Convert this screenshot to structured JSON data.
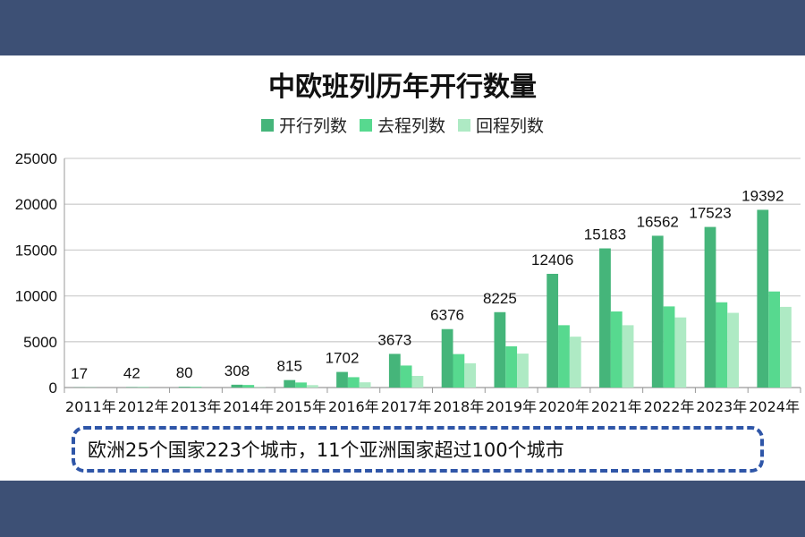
{
  "chart_data": {
    "type": "bar",
    "title": "中欧班列历年开行数量",
    "xlabel": "",
    "ylabel": "",
    "ylim": [
      0,
      25000
    ],
    "yticks": [
      "0",
      "5000",
      "10000",
      "15000",
      "20000",
      "25000"
    ],
    "grid": true,
    "legend_position": "top",
    "categories": [
      "2011年",
      "2012年",
      "2013年",
      "2014年",
      "2015年",
      "2016年",
      "2017年",
      "2018年",
      "2019年",
      "2020年",
      "2021年",
      "2022年",
      "2023年",
      "2024年"
    ],
    "series": [
      {
        "name": "开行列数",
        "color": "#45b57a",
        "values": [
          17,
          42,
          80,
          308,
          815,
          1702,
          3673,
          6376,
          8225,
          12406,
          15183,
          16562,
          17523,
          19392
        ],
        "labels": [
          "17",
          "42",
          "80",
          "308",
          "815",
          "1702",
          "3673",
          "6376",
          "8225",
          "12406",
          "15183",
          "16562",
          "17523",
          "19392"
        ]
      },
      {
        "name": "去程列数",
        "color": "#57d98f",
        "values": [
          17,
          42,
          80,
          280,
          550,
          1130,
          2400,
          3650,
          4500,
          6800,
          8300,
          8850,
          9300,
          10480
        ]
      },
      {
        "name": "回程列数",
        "color": "#aeeac4",
        "values": [
          0,
          0,
          0,
          28,
          265,
          570,
          1270,
          2650,
          3700,
          5550,
          6800,
          7650,
          8150,
          8800
        ]
      }
    ]
  },
  "note": "欧洲25个国家223个城市，11个亚洲国家超过100个城市"
}
